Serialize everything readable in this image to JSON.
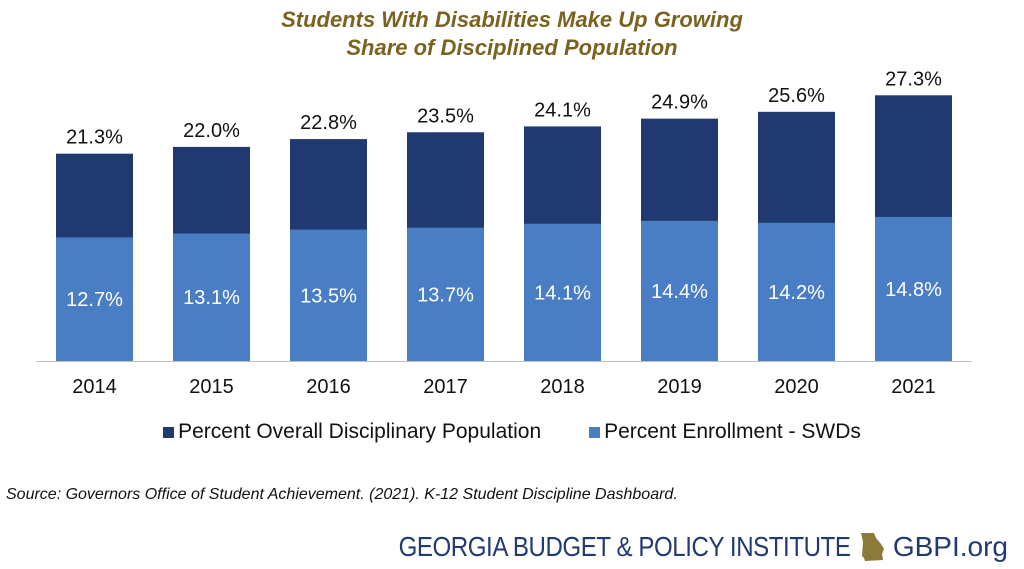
{
  "title": {
    "line1": "Students With Disabilities Make Up Growing",
    "line2": "Share of Disciplined Population"
  },
  "chart_data": {
    "type": "bar",
    "stacked": false,
    "overlapping": true,
    "categories": [
      "2014",
      "2015",
      "2016",
      "2017",
      "2018",
      "2019",
      "2020",
      "2021"
    ],
    "series": [
      {
        "name": "Percent Overall Disciplinary Population",
        "color": "#203a70",
        "values": [
          21.3,
          22.0,
          22.8,
          23.5,
          24.1,
          24.9,
          25.6,
          27.3
        ],
        "labels": [
          "21.3%",
          "22.0%",
          "22.8%",
          "23.5%",
          "24.1%",
          "24.9%",
          "25.6%",
          "27.3%"
        ]
      },
      {
        "name": "Percent Enrollment - SWDs",
        "color": "#4a7ec4",
        "values": [
          12.7,
          13.1,
          13.5,
          13.7,
          14.1,
          14.4,
          14.2,
          14.8
        ],
        "labels": [
          "12.7%",
          "13.1%",
          "13.5%",
          "13.7%",
          "14.1%",
          "14.4%",
          "14.2%",
          "14.8%"
        ]
      }
    ],
    "ylim": [
      0,
      30
    ],
    "grid": false,
    "legend_position": "bottom"
  },
  "source": "Source: Governors Office of Student Achievement. (2021). K-12 Student Discipline Dashboard.",
  "brand": {
    "name": "GEORGIA BUDGET & POLICY INSTITUTE",
    "site": "GBPI.org",
    "color": "#213a72",
    "icon": "georgia-state-icon",
    "icon_color": "#8b7a3a"
  }
}
